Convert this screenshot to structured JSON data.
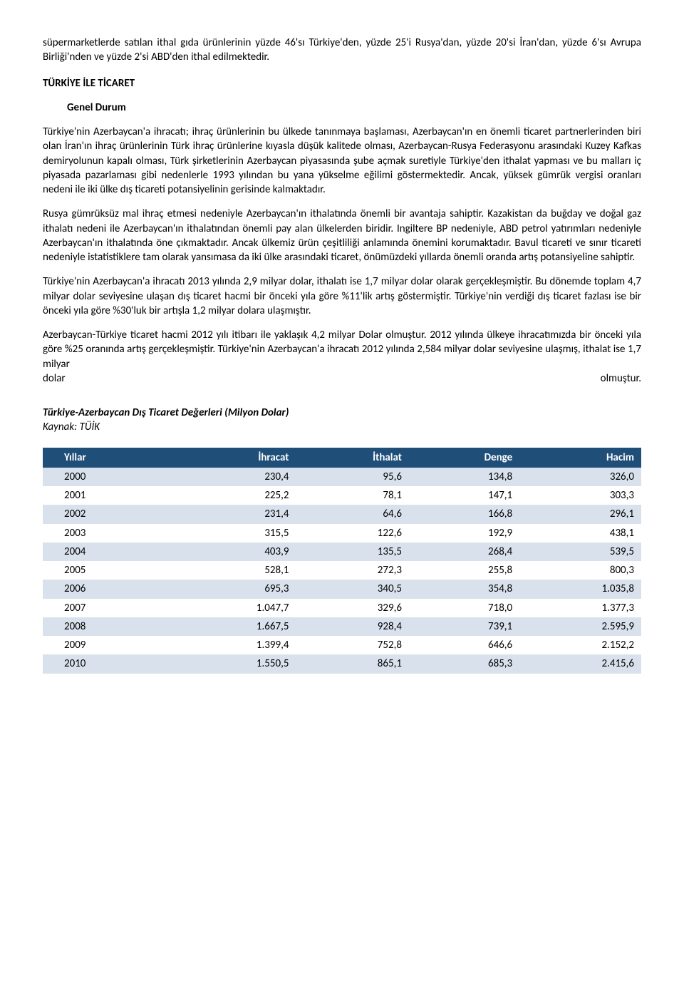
{
  "intro_para": "süpermarketlerde satılan ithal gıda ürünlerinin yüzde 46'sı Türkiye'den, yüzde 25'i Rusya'dan, yüzde 20'si İran'dan, yüzde 6'sı Avrupa Birliği'nden ve yüzde 2'si ABD'den ithal edilmektedir.",
  "section_heading": "TÜRKİYE İLE TİCARET",
  "sub_heading": "Genel Durum",
  "para1": "Türkiye'nin Azerbaycan'a ihracatı; ihraç ürünlerinin bu ülkede tanınmaya başlaması, Azerbaycan'ın en önemli ticaret partnerlerinden biri olan İran'ın ihraç ürünlerinin Türk ihraç ürünlerine kıyasla düşük kalitede olması, Azerbaycan-Rusya Federasyonu arasındaki Kuzey Kafkas demiryolunun kapalı olması, Türk şirketlerinin Azerbaycan piyasasında şube açmak suretiyle Türkiye'den ithalat yapması ve bu malları iç piyasada pazarlaması gibi nedenlerle 1993 yılından bu yana yükselme eğilimi göstermektedir. Ancak, yüksek gümrük vergisi oranları nedeni ile iki ülke dış ticareti potansiyelinin gerisinde kalmaktadır.",
  "para2": "Rusya gümrüksüz mal ihraç etmesi nedeniyle Azerbaycan'ın ithalatında önemli bir avantaja sahiptir. Kazakistan da buğday ve doğal gaz ithalatı nedeni ile Azerbaycan'ın ithalatından önemli pay alan ülkelerden biridir. Ingiltere BP nedeniyle, ABD petrol yatırımları nedeniyle Azerbaycan'ın ithalatında öne çıkmaktadır. Ancak ülkemiz ürün çeşitliliği anlamında önemini korumaktadır. Bavul ticareti ve sınır ticareti nedeniyle istatistiklere tam olarak yansımasa da iki ülke arasındaki ticaret, önümüzdeki yıllarda önemli oranda artış potansiyeline sahiptir.",
  "para3": "Türkiye'nin Azerbaycan'a ihracatı 2013 yılında 2,9 milyar dolar, ithalatı ise 1,7 milyar dolar olarak gerçekleşmiştir. Bu dönemde toplam 4,7 milyar dolar seviyesine ulaşan dış ticaret hacmi bir önceki yıla göre %11'lik artış göstermiştir. Türkiye'nin verdiği dış ticaret fazlası ise bir önceki yıla göre %30'luk bir artışla 1,2 milyar dolara ulaşmıştır.",
  "para4_prefix": "Azerbaycan-Türkiye ticaret hacmi 2012 yılı itibarı ile yaklaşık 4,2 milyar Dolar olmuştur. 2012 yılında ülkeye ihracatımızda bir önceki yıla göre %25 oranında artış gerçekleşmiştir. Türkiye'nin Azerbaycan'a ihracatı 2012 yılında 2,584 milyar dolar seviyesine ulaşmış, ithalat ise 1,7 milyar",
  "para4_left": "dolar",
  "para4_right": "olmuştur.",
  "table_title": "Türkiye-Azerbaycan Dış Ticaret Değerleri (Milyon Dolar)",
  "table_source": "Kaynak: TÜİK",
  "table": {
    "columns": [
      "Yıllar",
      "İhracat",
      "İthalat",
      "Denge",
      "Hacim"
    ],
    "rows": [
      [
        "2000",
        "230,4",
        "95,6",
        "134,8",
        "326,0"
      ],
      [
        "2001",
        "225,2",
        "78,1",
        "147,1",
        "303,3"
      ],
      [
        "2002",
        "231,4",
        "64,6",
        "166,8",
        "296,1"
      ],
      [
        "2003",
        "315,5",
        "122,6",
        "192,9",
        "438,1"
      ],
      [
        "2004",
        "403,9",
        "135,5",
        "268,4",
        "539,5"
      ],
      [
        "2005",
        "528,1",
        "272,3",
        "255,8",
        "800,3"
      ],
      [
        "2006",
        "695,3",
        "340,5",
        "354,8",
        "1.035,8"
      ],
      [
        "2007",
        "1.047,7",
        "329,6",
        "718,0",
        "1.377,3"
      ],
      [
        "2008",
        "1.667,5",
        "928,4",
        "739,1",
        "2.595,9"
      ],
      [
        "2009",
        "1.399,4",
        "752,8",
        "646,6",
        "2.152,2"
      ],
      [
        "2010",
        "1.550,5",
        "865,1",
        "685,3",
        "2.415,6"
      ]
    ],
    "header_bg": "#1f4e79",
    "header_fg": "#ffffff",
    "row_odd_bg": "#d9e2ec",
    "row_even_bg": "#ffffff"
  }
}
